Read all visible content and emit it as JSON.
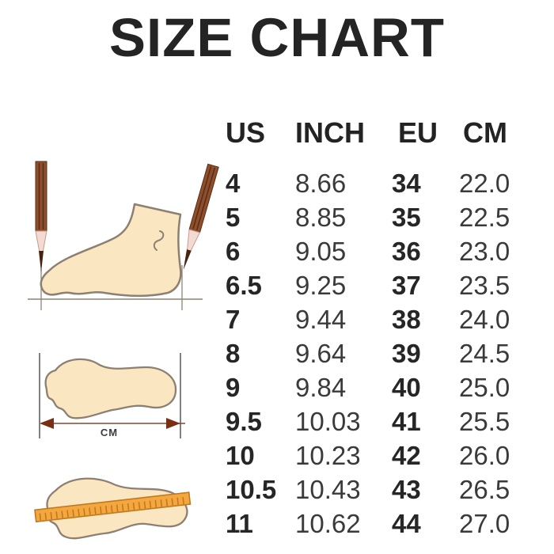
{
  "title": "SIZE CHART",
  "chart_data": {
    "type": "table",
    "title": "SIZE CHART",
    "columns": [
      "US",
      "INCH",
      "EU",
      "CM"
    ],
    "rows": [
      [
        "4",
        "8.66",
        "34",
        "22.0"
      ],
      [
        "5",
        "8.85",
        "35",
        "22.5"
      ],
      [
        "6",
        "9.05",
        "36",
        "23.0"
      ],
      [
        "6.5",
        "9.25",
        "37",
        "23.5"
      ],
      [
        "7",
        "9.44",
        "38",
        "24.0"
      ],
      [
        "8",
        "9.64",
        "39",
        "24.5"
      ],
      [
        "9",
        "9.84",
        "40",
        "25.0"
      ],
      [
        "9.5",
        "10.03",
        "41",
        "25.5"
      ],
      [
        "10",
        "10.23",
        "42",
        "26.0"
      ],
      [
        "10.5",
        "10.43",
        "43",
        "26.5"
      ],
      [
        "11",
        "10.62",
        "44",
        "27.0"
      ]
    ]
  },
  "illustrations": {
    "cm_label": "CM",
    "items": [
      "foot-side-view-measured-with-pencils",
      "footprint-length-with-cm-arrow",
      "footprint-with-ruler"
    ]
  },
  "colors": {
    "title_text": "#242424",
    "table_bold_text": "#262626",
    "table_light_text": "#3a3a3a",
    "foot_fill": "#fbe6c2",
    "foot_outline": "#8d8072",
    "pencil_brown": "#8d4f2c",
    "pencil_stripe": "#5a2c15",
    "pencil_wood": "#f3dbd3",
    "pencil_lead": "#44230f",
    "ruler_orange": "#f4a73e",
    "ruler_tick": "#c0791f",
    "arrow_brown": "#7a2e14",
    "guide_line": "#8d8474"
  }
}
